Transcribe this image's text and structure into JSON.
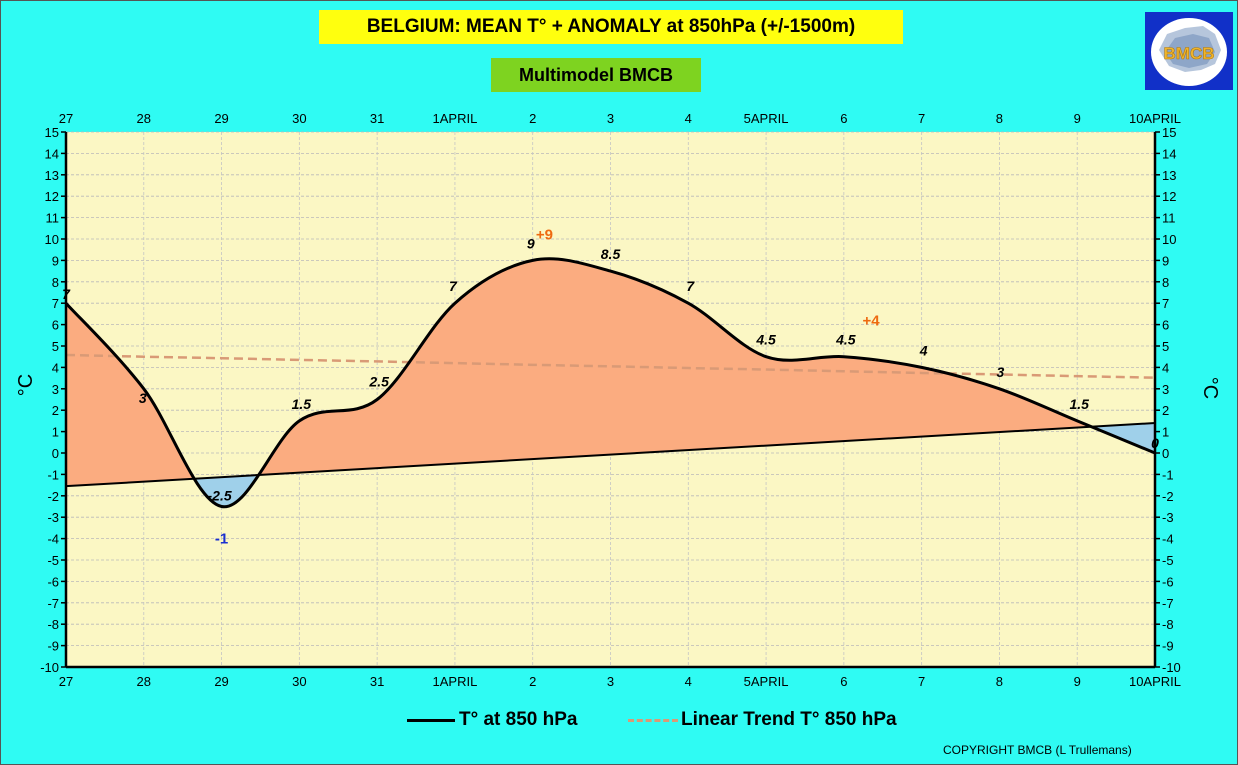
{
  "chart_data": {
    "type": "area",
    "title": "BELGIUM:  MEAN T° + ANOMALY at 850hPa (+/-1500m)",
    "subtitle": "Multimodel BMCB",
    "ylabel": "°C",
    "ylabel_right": "°C",
    "ylim": [
      -10,
      15
    ],
    "yticks": [
      -10,
      -9,
      -8,
      -7,
      -6,
      -5,
      -4,
      -3,
      -2,
      -1,
      0,
      1,
      2,
      3,
      4,
      5,
      6,
      7,
      8,
      9,
      10,
      11,
      12,
      13,
      14,
      15
    ],
    "categories": [
      "27",
      "28",
      "29",
      "30",
      "31",
      "1APRIL",
      "2",
      "3",
      "4",
      "5APRIL",
      "6",
      "7",
      "8",
      "9",
      "10APRIL"
    ],
    "series": [
      {
        "name": "T° at 850 hPa",
        "values": [
          7,
          3,
          -2.5,
          1.5,
          2.5,
          7,
          9,
          8.5,
          7,
          4.5,
          4.5,
          4,
          3,
          1.5,
          0
        ],
        "color": "#000000"
      },
      {
        "name": "Linear Trend T° 850 hPa",
        "values": [
          4.58,
          4.5,
          4.43,
          4.35,
          4.28,
          4.2,
          4.12,
          4.05,
          3.97,
          3.9,
          3.82,
          3.74,
          3.67,
          3.59,
          3.52
        ],
        "color": "#d99a76",
        "style": "dashed"
      }
    ],
    "reference_line": {
      "values": [
        -1.55,
        1.4
      ]
    },
    "data_labels": [
      "7",
      "3",
      "-2.5",
      "1.5",
      "2.5",
      "7",
      "9",
      "8.5",
      "7",
      "4.5",
      "4.5",
      "4",
      "3",
      "1.5",
      "0"
    ],
    "anomaly_annotations": [
      {
        "text": "+9",
        "x": 6.15,
        "y": 10.2,
        "color": "#ee6a10"
      },
      {
        "text": "+4",
        "x": 10.35,
        "y": 6.2,
        "color": "#ee6a10"
      },
      {
        "text": "-1",
        "x": 2.0,
        "y": -4.0,
        "color": "#1a2fd0"
      }
    ],
    "fill_above_color": "#fbac80",
    "fill_below_color": "#9fd0ea",
    "plot_background": "#fbf7c4",
    "grid": true
  },
  "legend": {
    "label_1": "T° at 850 hPa",
    "label_2": "Linear Trend T° 850 hPa"
  },
  "copyright": "COPYRIGHT BMCB (L Trullemans)",
  "logo": {
    "text": "BMCB",
    "icon": "belgium-map-icon"
  }
}
